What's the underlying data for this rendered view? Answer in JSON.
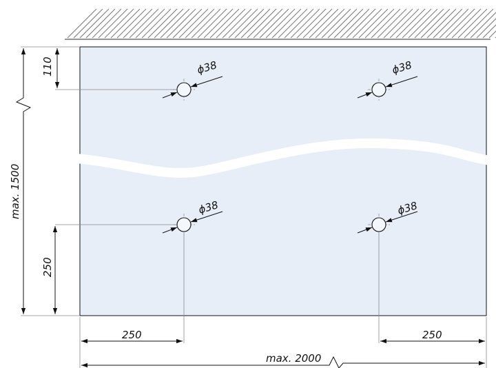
{
  "drawing": {
    "hole_label": "ϕ38",
    "dims": {
      "top_offset": "110",
      "bottom_offset": "250",
      "height": "max. 1500",
      "left_offset": "250",
      "right_offset": "250",
      "width": "max. 2000"
    }
  },
  "colors": {
    "panel_fill": "#e8eef8",
    "line": "#111111",
    "guide": "#8a8a8a",
    "hatch": "#777777"
  }
}
